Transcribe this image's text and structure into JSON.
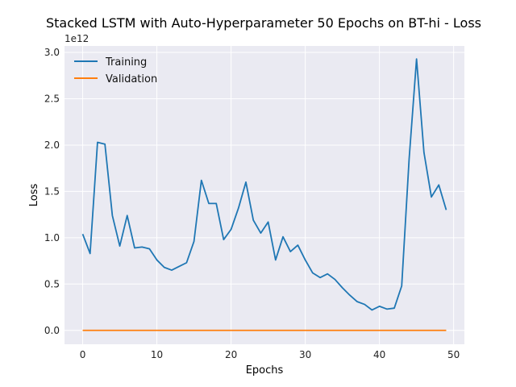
{
  "chart_data": {
    "type": "line",
    "title": "Stacked LSTM with Auto-Hyperparameter 50 Epochs on BT-hi - Loss",
    "xlabel": "Epochs",
    "ylabel": "Loss",
    "y_offset_text": "1e12",
    "xlim": [
      -2.45,
      51.45
    ],
    "ylim": [
      -0.15,
      3.07
    ],
    "x_ticks": [
      0,
      10,
      20,
      30,
      40,
      50
    ],
    "y_ticks": [
      0.0,
      0.5,
      1.0,
      1.5,
      2.0,
      2.5,
      3.0
    ],
    "x_tick_labels": [
      "0",
      "10",
      "20",
      "30",
      "40",
      "50"
    ],
    "y_tick_labels": [
      "0.0",
      "0.5",
      "1.0",
      "1.5",
      "2.0",
      "2.5",
      "3.0"
    ],
    "grid": true,
    "legend_position": "upper-left",
    "x": [
      0,
      1,
      2,
      3,
      4,
      5,
      6,
      7,
      8,
      9,
      10,
      11,
      12,
      13,
      14,
      15,
      16,
      17,
      18,
      19,
      20,
      21,
      22,
      23,
      24,
      25,
      26,
      27,
      28,
      29,
      30,
      31,
      32,
      33,
      34,
      35,
      36,
      37,
      38,
      39,
      40,
      41,
      42,
      43,
      44,
      45,
      46,
      47,
      48,
      49
    ],
    "series": [
      {
        "name": "Training",
        "color": "#1f77b4",
        "values": [
          1.04,
          0.83,
          2.03,
          2.01,
          1.24,
          0.91,
          1.24,
          0.89,
          0.9,
          0.88,
          0.76,
          0.68,
          0.65,
          0.69,
          0.73,
          0.96,
          1.62,
          1.37,
          1.37,
          0.98,
          1.09,
          1.32,
          1.6,
          1.19,
          1.05,
          1.17,
          0.76,
          1.01,
          0.85,
          0.92,
          0.76,
          0.62,
          0.57,
          0.61,
          0.55,
          0.46,
          0.38,
          0.31,
          0.28,
          0.22,
          0.26,
          0.23,
          0.24,
          0.48,
          1.85,
          2.93,
          1.92,
          1.44,
          1.57,
          1.3
        ]
      },
      {
        "name": "Validation",
        "color": "#ff7f0e",
        "values": [
          0,
          0,
          0,
          0,
          0,
          0,
          0,
          0,
          0,
          0,
          0,
          0,
          0,
          0,
          0,
          0,
          0,
          0,
          0,
          0,
          0,
          0,
          0,
          0,
          0,
          0,
          0,
          0,
          0,
          0,
          0,
          0,
          0,
          0,
          0,
          0,
          0,
          0,
          0,
          0,
          0,
          0,
          0,
          0,
          0,
          0,
          0,
          0,
          0,
          0
        ]
      }
    ]
  },
  "style": {
    "plot_background": "#eaeaf2",
    "grid_color": "#ffffff"
  }
}
